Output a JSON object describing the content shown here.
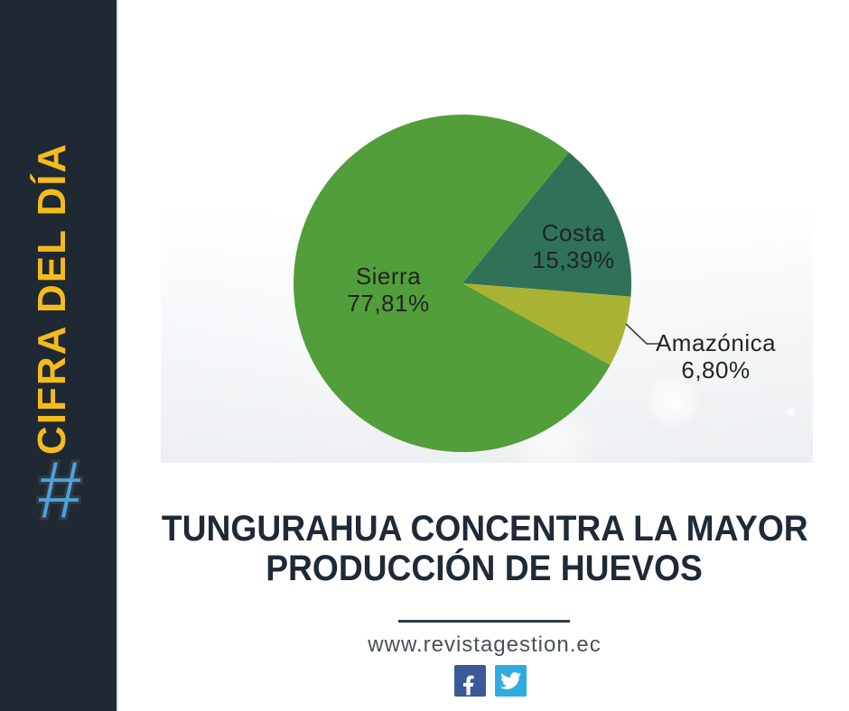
{
  "sidebar": {
    "vertical_label": "CIFRA DEL DÍA",
    "hashtag_symbol": "#"
  },
  "chart_data": {
    "type": "pie",
    "categories": [
      "Sierra",
      "Costa",
      "Amazónica"
    ],
    "values": [
      77.81,
      15.39,
      6.8
    ],
    "value_labels": [
      "77,81%",
      "15,39%",
      "6,80%"
    ],
    "colors": [
      "#529e3a",
      "#2f7257",
      "#a9b233"
    ],
    "start_angle_deg": 50.9,
    "legend_position": "none",
    "labels_on_chart": true,
    "title": ""
  },
  "headline": {
    "line1": "TUNGURAHUA CONCENTRA LA MAYOR",
    "line2": "PRODUCCIÓN DE HUEVOS"
  },
  "footer": {
    "website": "www.revistagestion.ec",
    "social": [
      "facebook-icon",
      "twitter-icon"
    ]
  },
  "theme": {
    "sidebar_bg": "#1e2933",
    "sidebar_label_color": "#f5bb1c",
    "hashtag_color": "#4aa2de",
    "title_color": "#1e2a37",
    "divider_color": "#2e3b47",
    "url_color": "#4a5058",
    "facebook_color": "#3b5998",
    "twitter_color": "#2fabe1",
    "label_text_color": "#242424"
  }
}
